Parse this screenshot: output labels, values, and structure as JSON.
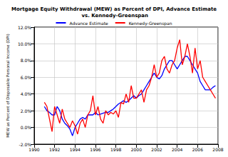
{
  "chart_data": {
    "type": "line",
    "title": "Mortgage Equity Withdrawal (MEW) as Percent of DPI, Advance Estimate vs. Kennedy-Greenspan",
    "y_label": "MEW as Percent of Disposable Personal Income (DPI)",
    "x": [
      1991,
      1991.25,
      1991.5,
      1991.75,
      1992,
      1992.25,
      1992.5,
      1992.75,
      1993,
      1993.25,
      1993.5,
      1993.75,
      1994,
      1994.25,
      1994.5,
      1994.75,
      1995,
      1995.25,
      1995.5,
      1995.75,
      1996,
      1996.25,
      1996.5,
      1996.75,
      1997,
      1997.25,
      1997.5,
      1997.75,
      1998,
      1998.25,
      1998.5,
      1998.75,
      1999,
      1999.25,
      1999.5,
      1999.75,
      2000,
      2000.25,
      2000.5,
      2000.75,
      2001,
      2001.25,
      2001.5,
      2001.75,
      2002,
      2002.25,
      2002.5,
      2002.75,
      2003,
      2003.25,
      2003.5,
      2003.75,
      2004,
      2004.25,
      2004.5,
      2004.75,
      2005,
      2005.25,
      2005.5,
      2005.75,
      2006,
      2006.25,
      2006.5,
      2006.75,
      2007,
      2007.25,
      2007.5,
      2007.75
    ],
    "series": [
      {
        "name": "Advance Estimate",
        "color": "#0000ff",
        "values": [
          2.5,
          2.0,
          1.8,
          1.5,
          1.5,
          2.5,
          2.0,
          1.0,
          0.5,
          0.2,
          -0.2,
          -1.0,
          0.0,
          0.5,
          1.0,
          1.2,
          1.0,
          1.5,
          1.5,
          1.5,
          1.8,
          1.5,
          1.6,
          1.7,
          1.8,
          1.8,
          2.0,
          2.2,
          2.5,
          2.8,
          3.0,
          3.2,
          3.0,
          3.2,
          3.5,
          3.8,
          3.5,
          3.8,
          4.0,
          4.5,
          5.0,
          5.5,
          6.0,
          6.5,
          6.0,
          5.8,
          6.2,
          7.0,
          7.5,
          8.0,
          8.0,
          7.5,
          7.0,
          7.5,
          8.0,
          8.5,
          8.5,
          8.0,
          7.5,
          7.0,
          6.5,
          5.5,
          5.0,
          4.5,
          4.5,
          4.5,
          4.8,
          5.0
        ]
      },
      {
        "name": "Kennedy-Greenspan",
        "color": "#ff0000",
        "values": [
          3.0,
          2.5,
          1.0,
          -0.5,
          2.5,
          1.5,
          0.5,
          2.2,
          1.0,
          0.5,
          0.0,
          0.8,
          0.2,
          -0.8,
          0.5,
          1.0,
          0.0,
          1.5,
          2.0,
          3.8,
          1.5,
          2.5,
          1.0,
          0.5,
          2.0,
          1.5,
          1.8,
          1.6,
          2.0,
          1.2,
          3.0,
          2.8,
          4.0,
          3.0,
          5.0,
          3.5,
          3.5,
          4.0,
          4.5,
          3.0,
          4.5,
          5.0,
          6.0,
          7.5,
          6.0,
          6.5,
          8.0,
          8.5,
          7.0,
          6.5,
          7.5,
          8.0,
          9.5,
          10.5,
          7.5,
          8.5,
          10.0,
          8.5,
          6.5,
          9.5,
          7.0,
          8.0,
          6.0,
          5.5,
          5.0,
          4.5,
          4.0,
          3.5
        ]
      }
    ],
    "xlim": [
      1990,
      2008
    ],
    "xticks": [
      1990,
      1992,
      1994,
      1996,
      1998,
      2000,
      2002,
      2004,
      2006,
      2008
    ],
    "ylim": [
      -2,
      12
    ],
    "yticks": [
      {
        "value": -2,
        "label": "-2.0%"
      },
      {
        "value": 0,
        "label": "0.0%"
      },
      {
        "value": 2,
        "label": "2.0%"
      },
      {
        "value": 4,
        "label": "4.0%"
      },
      {
        "value": 6,
        "label": "6.0%"
      },
      {
        "value": 8,
        "label": "8.0%"
      },
      {
        "value": 10,
        "label": "10.0%"
      },
      {
        "value": 12,
        "label": "12.0%"
      }
    ],
    "grid": true,
    "legend": "top",
    "marker": "none"
  }
}
